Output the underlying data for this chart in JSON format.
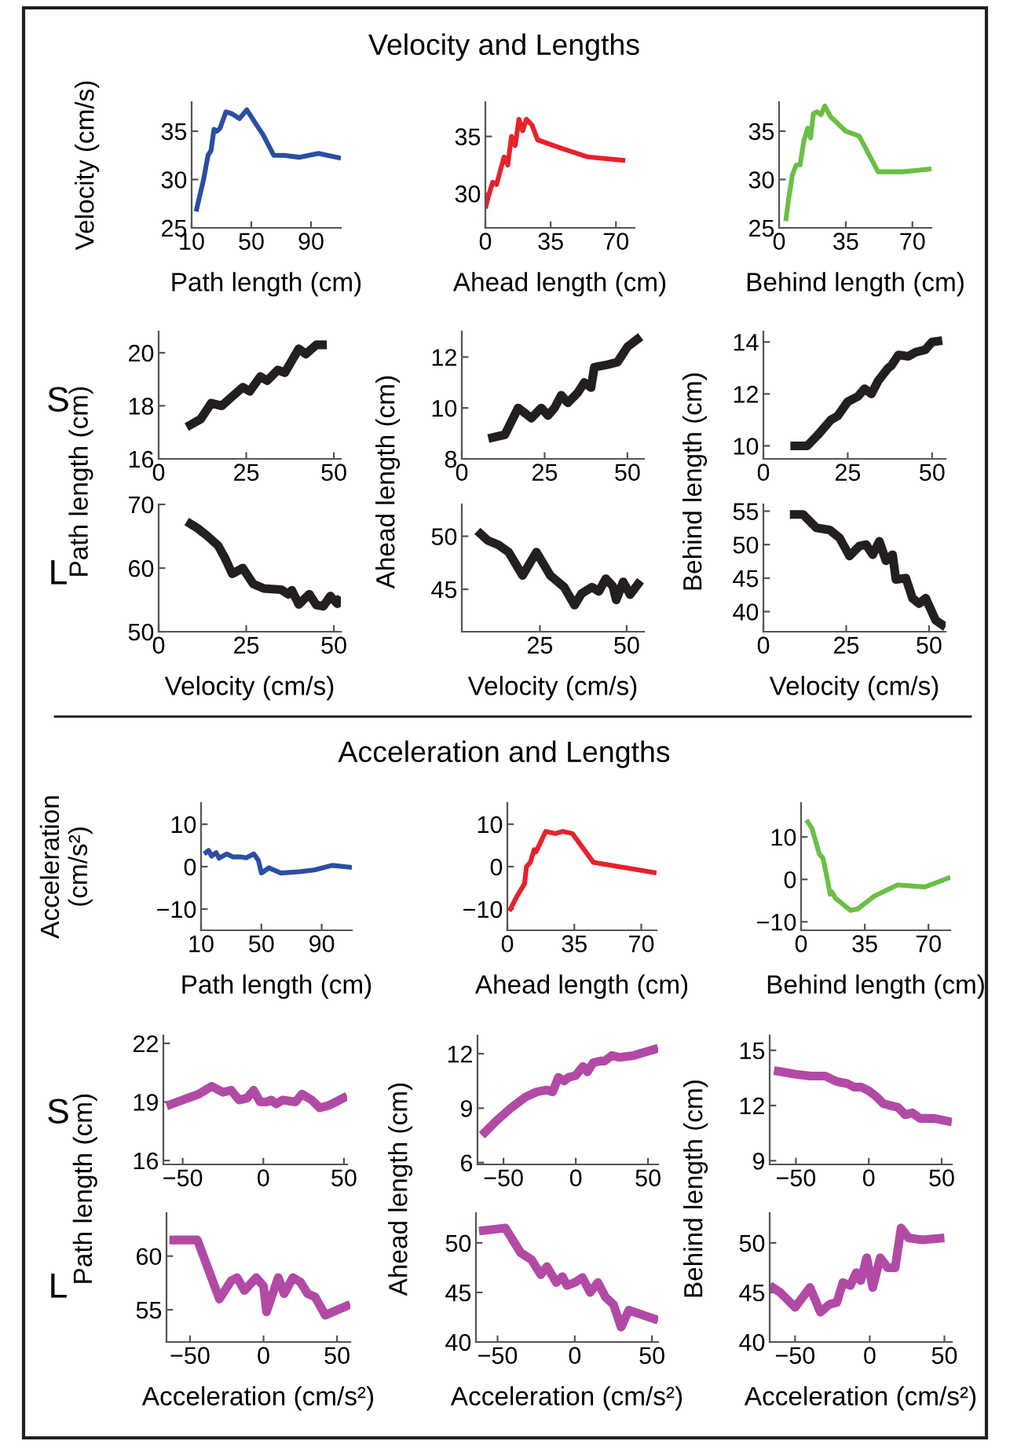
{
  "chart_data": [
    {
      "type": "line",
      "annotations": [
        "Velocity and Lengths"
      ],
      "xlabel": "Path length (cm)",
      "ylabel": "Velocity (cm/s)",
      "xlim": [
        10,
        110
      ],
      "ylim": [
        25,
        38
      ],
      "xticks": [
        10,
        50,
        90
      ],
      "yticks": [
        25,
        30,
        35
      ],
      "series": [
        {
          "color": "#2b4ea2",
          "x": [
            13,
            18,
            21,
            23,
            25,
            27,
            29,
            33,
            37,
            42,
            47,
            52,
            58,
            65,
            72,
            82,
            95,
            110
          ],
          "values": [
            26.7,
            30,
            32.5,
            33,
            35.2,
            35,
            35.3,
            37,
            36.8,
            36.3,
            37.2,
            36,
            34.6,
            32.5,
            32.5,
            32.3,
            32.7,
            32.2
          ]
        }
      ]
    },
    {
      "type": "line",
      "xlabel": "Ahead length (cm)",
      "xlim": [
        0,
        80
      ],
      "ylim": [
        27,
        38
      ],
      "xticks": [
        0,
        35,
        70
      ],
      "yticks": [
        30,
        35
      ],
      "series": [
        {
          "color": "#e8212a",
          "x": [
            0,
            2,
            4,
            6,
            8,
            10,
            12,
            14,
            16,
            18,
            20,
            22,
            25,
            28,
            40,
            55,
            75
          ],
          "values": [
            28.7,
            30,
            31,
            30.8,
            32,
            33.2,
            32.5,
            35,
            34.2,
            36.5,
            35.5,
            36.5,
            36,
            34.7,
            34,
            33.2,
            32.9
          ]
        }
      ]
    },
    {
      "type": "line",
      "xlabel": "Behind length (cm)",
      "xlim": [
        0,
        80
      ],
      "ylim": [
        25,
        38
      ],
      "xticks": [
        0,
        35,
        70
      ],
      "yticks": [
        25,
        30,
        35
      ],
      "series": [
        {
          "color": "#6abf45",
          "x": [
            3.5,
            5,
            7,
            9,
            11,
            13,
            15,
            16.5,
            18,
            20,
            22,
            24,
            27,
            35,
            42,
            52,
            65,
            80
          ],
          "values": [
            25.7,
            28,
            30.5,
            31.5,
            31.5,
            34,
            35.3,
            34.3,
            36.8,
            37,
            36.7,
            37.6,
            36.5,
            35,
            34.5,
            30.8,
            30.8,
            31.1
          ]
        }
      ]
    },
    {
      "type": "line",
      "annotations": [
        "S"
      ],
      "ylabel": "Path length (cm)",
      "xlim": [
        0,
        52
      ],
      "ylim": [
        16,
        20.8
      ],
      "xticks": [
        0,
        25,
        50
      ],
      "yticks": [
        16,
        18,
        20
      ],
      "series": [
        {
          "color": "#231f20",
          "x": [
            8,
            12,
            15,
            18,
            21,
            24,
            26,
            29,
            31,
            34,
            36,
            38,
            40,
            42,
            45,
            48
          ],
          "values": [
            17.2,
            17.5,
            18.1,
            18,
            18.35,
            18.7,
            18.55,
            19.1,
            18.95,
            19.35,
            19.25,
            19.7,
            20.15,
            19.95,
            20.3,
            20.3
          ]
        }
      ]
    },
    {
      "type": "line",
      "ylabel": "Ahead length (cm)",
      "xlim": [
        0,
        55
      ],
      "ylim": [
        8,
        13
      ],
      "xticks": [
        0,
        25,
        50
      ],
      "yticks": [
        8,
        10,
        12
      ],
      "series": [
        {
          "color": "#231f20",
          "x": [
            8,
            13,
            17,
            21,
            24,
            26,
            28,
            30,
            32,
            35,
            37,
            39,
            40,
            44,
            47,
            50,
            54
          ],
          "values": [
            8.8,
            8.95,
            10,
            9.6,
            10,
            9.7,
            10,
            10.5,
            10.2,
            10.6,
            11,
            10.8,
            11.6,
            11.7,
            11.8,
            12.4,
            12.8
          ]
        }
      ]
    },
    {
      "type": "line",
      "ylabel": "Behind length (cm)",
      "xlim": [
        0,
        54
      ],
      "ylim": [
        9.5,
        14.4
      ],
      "xticks": [
        0,
        25,
        50
      ],
      "yticks": [
        10,
        12,
        14
      ],
      "series": [
        {
          "color": "#231f20",
          "x": [
            8,
            13,
            16,
            20,
            22,
            25,
            28,
            30,
            32,
            34,
            37,
            38,
            40,
            43,
            45,
            48,
            50,
            53
          ],
          "values": [
            10,
            10,
            10.4,
            11,
            11.15,
            11.7,
            11.9,
            12.2,
            12,
            12.5,
            13,
            13.1,
            13.5,
            13.45,
            13.6,
            13.7,
            14,
            14.05
          ]
        }
      ]
    },
    {
      "type": "line",
      "annotations": [
        "L"
      ],
      "xlabel": "Velocity (cm/s)",
      "xlim": [
        0,
        52
      ],
      "ylim": [
        50,
        70
      ],
      "xticks": [
        0,
        25,
        50
      ],
      "yticks": [
        50,
        60,
        70
      ],
      "series": [
        {
          "color": "#231f20",
          "x": [
            8,
            11,
            14,
            17,
            19,
            21,
            24,
            27,
            30,
            35,
            37,
            38,
            40,
            43,
            45,
            47,
            49,
            51,
            52
          ],
          "values": [
            67.3,
            66.3,
            65,
            63.5,
            61.5,
            59.1,
            60,
            57.5,
            56.8,
            56.6,
            55.9,
            56.5,
            54.3,
            55.9,
            54.2,
            54,
            55.6,
            54.4,
            55.5
          ]
        }
      ]
    },
    {
      "type": "line",
      "xlabel": "Velocity (cm/s)",
      "xlim": [
        2.5,
        55
      ],
      "ylim": [
        41,
        53
      ],
      "xticks": [
        25,
        50
      ],
      "yticks": [
        45,
        50
      ],
      "series": [
        {
          "color": "#231f20",
          "x": [
            7,
            10,
            13,
            16,
            20,
            24,
            28,
            32,
            35,
            37,
            40,
            42,
            44,
            46,
            47,
            49,
            51,
            54
          ],
          "values": [
            50.5,
            49.6,
            49.2,
            48.5,
            46.3,
            48.5,
            46.3,
            45.2,
            43.5,
            44.6,
            45.2,
            44.8,
            46,
            45.3,
            44,
            45.7,
            44.5,
            45.8
          ]
        }
      ]
    },
    {
      "type": "line",
      "xlabel": "Velocity (cm/s)",
      "xlim": [
        0,
        55
      ],
      "ylim": [
        37,
        56
      ],
      "xticks": [
        0,
        25,
        50
      ],
      "yticks": [
        40,
        45,
        50,
        55
      ],
      "series": [
        {
          "color": "#231f20",
          "x": [
            8,
            12,
            16,
            20,
            23,
            26,
            29,
            31,
            33,
            35,
            37,
            39,
            40,
            43,
            45,
            47,
            49,
            52,
            55
          ],
          "values": [
            54.5,
            54.5,
            52.5,
            52.2,
            51,
            48.3,
            49.8,
            50,
            48.5,
            50.5,
            47.6,
            48.5,
            44.8,
            45,
            42,
            41.2,
            42,
            38.7,
            37.7
          ]
        }
      ]
    },
    {
      "type": "line",
      "annotations": [
        "Acceleration and Lengths"
      ],
      "xlabel": "Path length (cm)",
      "ylabel": "Acceleration\n(cm/s²)",
      "xlim": [
        10,
        110
      ],
      "ylim": [
        -15,
        15
      ],
      "xticks": [
        10,
        50,
        90
      ],
      "yticks": [
        -10,
        0,
        10
      ],
      "series": [
        {
          "color": "#2b4ea2",
          "x": [
            12,
            15,
            17,
            20,
            22,
            27,
            31,
            36,
            40,
            45,
            48,
            50,
            55,
            63,
            75,
            85,
            97,
            110
          ],
          "values": [
            3,
            3.8,
            2.5,
            3.3,
            2,
            3,
            2.3,
            2.3,
            2.1,
            3,
            1.5,
            -1.5,
            -0.3,
            -1.5,
            -1.2,
            -0.8,
            0.3,
            -0.2
          ]
        }
      ]
    },
    {
      "type": "line",
      "xlabel": "Ahead length (cm)",
      "xlim": [
        0,
        78
      ],
      "ylim": [
        -15,
        15
      ],
      "xticks": [
        0,
        35,
        70
      ],
      "yticks": [
        -10,
        0,
        10
      ],
      "series": [
        {
          "color": "#e8212a",
          "x": [
            1,
            5,
            9,
            10,
            12,
            14,
            15,
            20,
            25,
            29,
            34,
            45,
            78
          ],
          "values": [
            -10.5,
            -7,
            -4,
            0,
            1,
            4,
            3.5,
            8.3,
            7.8,
            8.3,
            7.8,
            1,
            -1.5
          ]
        }
      ]
    },
    {
      "type": "line",
      "xlabel": "Behind length (cm)",
      "xlim": [
        0,
        82
      ],
      "ylim": [
        -12,
        18
      ],
      "xticks": [
        0,
        35,
        70
      ],
      "yticks": [
        -10,
        0,
        10
      ],
      "series": [
        {
          "color": "#6abf45",
          "x": [
            3,
            6,
            8,
            10,
            12,
            14,
            16,
            17,
            19,
            22,
            27,
            31,
            40,
            53,
            68,
            82
          ],
          "values": [
            14,
            12,
            9,
            6,
            5,
            1,
            -3.5,
            -3,
            -4.5,
            -5.5,
            -7.3,
            -7,
            -4,
            -1.3,
            -1.8,
            0.5
          ]
        }
      ]
    },
    {
      "type": "line",
      "annotations": [
        "S"
      ],
      "ylabel": "Path length (cm)",
      "xlim": [
        -62,
        52
      ],
      "ylim": [
        15.8,
        22.4
      ],
      "xticks": [
        -50,
        0,
        50
      ],
      "yticks": [
        16,
        19,
        22
      ],
      "series": [
        {
          "color": "#b24aa5",
          "x": [
            -60,
            -50,
            -40,
            -32,
            -25,
            -20,
            -15,
            -10,
            -6,
            -2,
            2,
            5,
            8,
            12,
            20,
            24,
            30,
            35,
            40,
            45,
            52
          ],
          "values": [
            18.8,
            19.1,
            19.4,
            19.8,
            19.5,
            19.6,
            19.1,
            19.2,
            19.6,
            19,
            19,
            19.1,
            18.9,
            19.1,
            19,
            19.4,
            19.1,
            18.7,
            18.8,
            19,
            19.3
          ]
        }
      ]
    },
    {
      "type": "line",
      "ylabel": "Ahead length (cm)",
      "xlim": [
        -68,
        57
      ],
      "ylim": [
        5.9,
        13
      ],
      "xticks": [
        -50,
        0,
        50
      ],
      "yticks": [
        6,
        9,
        12
      ],
      "series": [
        {
          "color": "#b24aa5",
          "x": [
            -65,
            -55,
            -45,
            -35,
            -27,
            -20,
            -16,
            -12,
            -8,
            -5,
            0,
            5,
            8,
            12,
            17,
            20,
            25,
            30,
            40,
            57
          ],
          "values": [
            7.5,
            8.3,
            9,
            9.6,
            9.9,
            10,
            9.9,
            10.7,
            10.5,
            10.7,
            10.8,
            11.3,
            11,
            11.5,
            11.6,
            11.6,
            11.9,
            11.8,
            11.9,
            12.3
          ]
        }
      ]
    },
    {
      "type": "line",
      "ylabel": "Behind length (cm)",
      "xlim": [
        -68,
        57
      ],
      "ylim": [
        8.8,
        15.8
      ],
      "xticks": [
        -50,
        0,
        50
      ],
      "yticks": [
        9,
        12,
        15
      ],
      "series": [
        {
          "color": "#b24aa5",
          "x": [
            -65,
            -50,
            -40,
            -30,
            -22,
            -15,
            -10,
            -5,
            0,
            5,
            10,
            15,
            20,
            25,
            30,
            35,
            45,
            57
          ],
          "values": [
            13.9,
            13.7,
            13.6,
            13.6,
            13.3,
            13.2,
            13,
            13,
            12.8,
            12.5,
            12.1,
            12,
            11.9,
            11.5,
            11.6,
            11.3,
            11.3,
            11.1
          ]
        }
      ]
    },
    {
      "type": "line",
      "annotations": [
        "L"
      ],
      "xlabel": "Acceleration (cm/s²)",
      "xlim": [
        -66,
        59
      ],
      "ylim": [
        52,
        64
      ],
      "xticks": [
        -50,
        0,
        50
      ],
      "yticks": [
        55,
        60
      ],
      "series": [
        {
          "color": "#b24aa5",
          "x": [
            -64,
            -45,
            -30,
            -22,
            -18,
            -13,
            -5,
            0,
            2,
            10,
            14,
            20,
            25,
            30,
            35,
            42,
            59
          ],
          "values": [
            61.5,
            61.5,
            56,
            57.7,
            58,
            56.8,
            58,
            57.2,
            54.8,
            58,
            56.5,
            58,
            57.6,
            56.5,
            56.2,
            54.5,
            55.5
          ]
        }
      ]
    },
    {
      "type": "line",
      "xlabel": "Acceleration (cm/s²)",
      "xlim": [
        -64,
        54
      ],
      "ylim": [
        40,
        53
      ],
      "xticks": [
        -50,
        0,
        50
      ],
      "yticks": [
        40,
        45,
        50
      ],
      "series": [
        {
          "color": "#b24aa5",
          "x": [
            -62,
            -45,
            -35,
            -28,
            -22,
            -18,
            -12,
            -8,
            -5,
            0,
            5,
            10,
            15,
            20,
            25,
            30,
            35,
            54
          ],
          "values": [
            51.2,
            51.5,
            49,
            48.3,
            46.8,
            47.6,
            46,
            46.6,
            45.7,
            46,
            46.5,
            45,
            46,
            44.5,
            43.8,
            41.5,
            43.2,
            42.2
          ]
        }
      ]
    },
    {
      "type": "line",
      "xlabel": "Acceleration (cm/s²)",
      "xlim": [
        -67,
        55
      ],
      "ylim": [
        40,
        53
      ],
      "xticks": [
        -50,
        0,
        50
      ],
      "yticks": [
        40,
        45,
        50
      ],
      "series": [
        {
          "color": "#b24aa5",
          "x": [
            -67,
            -60,
            -50,
            -40,
            -33,
            -27,
            -22,
            -18,
            -13,
            -9,
            -6,
            -2,
            2,
            7,
            12,
            17,
            21,
            26,
            35,
            50
          ],
          "values": [
            45.7,
            45,
            43.5,
            45.5,
            43,
            43.8,
            44,
            46,
            45.7,
            47,
            46.2,
            48.5,
            45.5,
            48.5,
            47.5,
            47.5,
            51.5,
            50.5,
            50.3,
            50.5
          ]
        }
      ]
    }
  ]
}
